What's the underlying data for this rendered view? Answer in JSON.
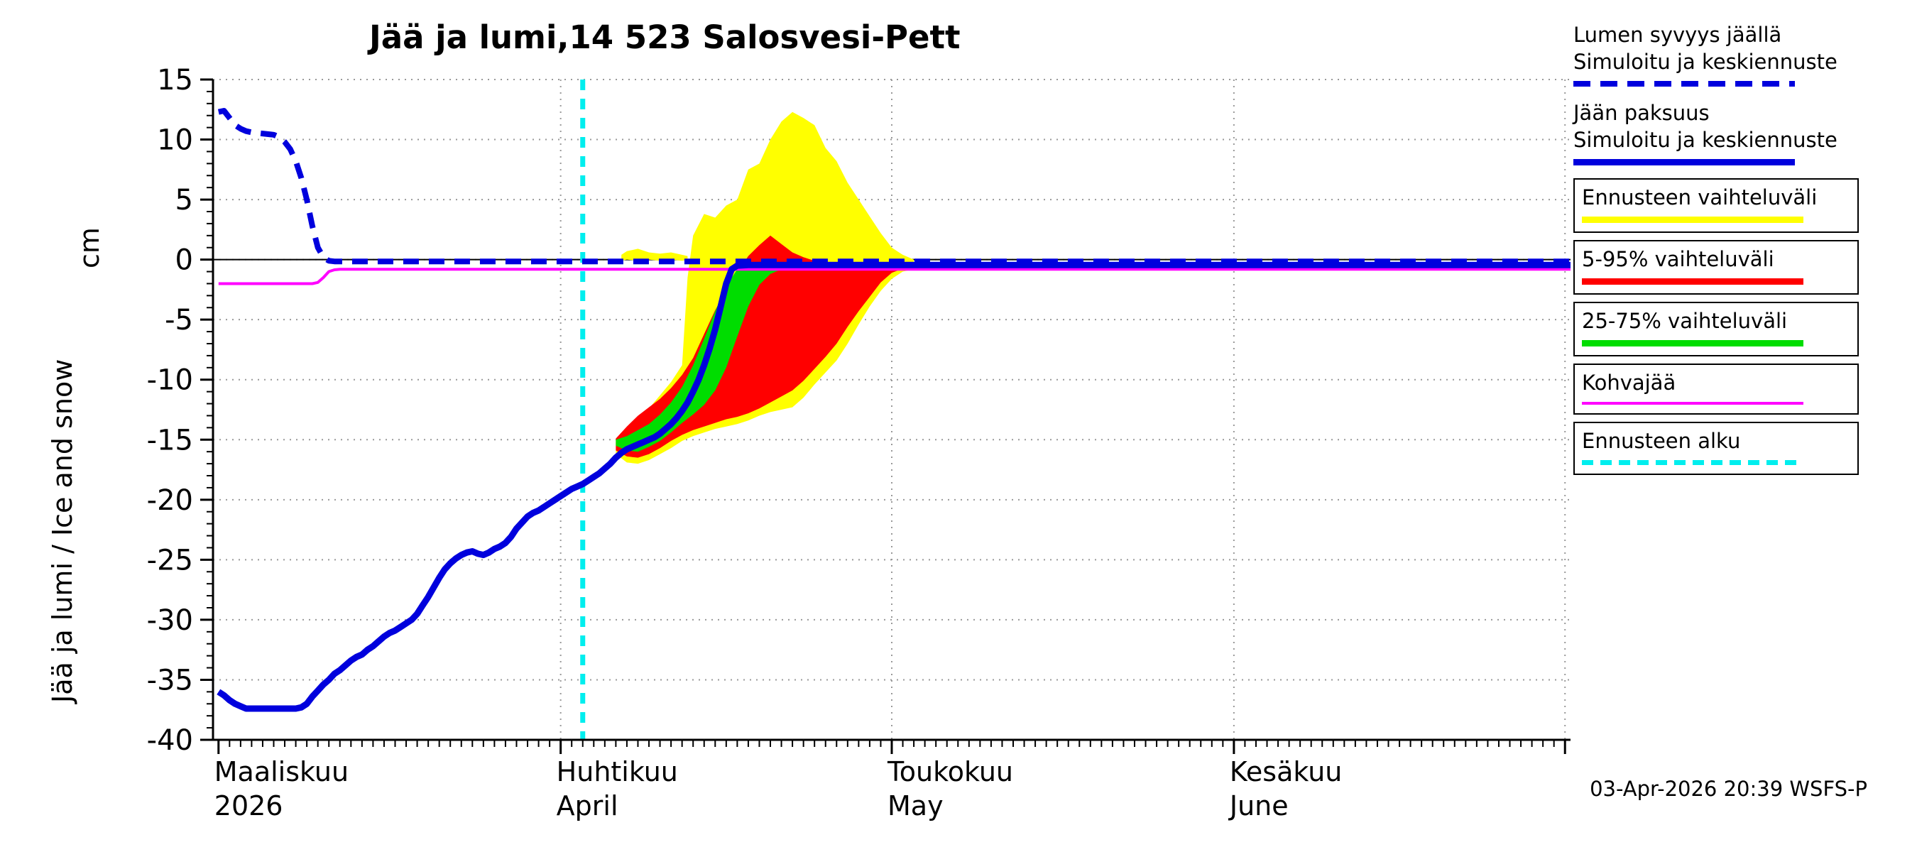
{
  "chart_data": {
    "type": "line",
    "title": "Jää ja lumi,14 523 Salosvesi-Pett",
    "ylabel": "Jää ja lumi / Ice and snow",
    "ylabel_unit": "cm",
    "ylim": [
      -40,
      15
    ],
    "yticks": [
      15,
      10,
      5,
      0,
      -5,
      -10,
      -15,
      -20,
      -25,
      -30,
      -35,
      -40
    ],
    "xlim_days": [
      -0.5,
      122.5
    ],
    "x_month_ticks": [
      {
        "day": 0,
        "line1": "Maaliskuu",
        "line2": "2026"
      },
      {
        "day": 31,
        "line1": "Huhtikuu",
        "line2": "April"
      },
      {
        "day": 61,
        "line1": "Toukokuu",
        "line2": "May"
      },
      {
        "day": 92,
        "line1": "Kesäkuu",
        "line2": "June"
      }
    ],
    "x_grid_days": [
      31,
      61,
      92,
      122
    ],
    "forecast_start_day": 33,
    "colors": {
      "blue": "#0000dd",
      "yellow": "#ffff00",
      "red": "#ff0000",
      "green": "#00dd00",
      "magenta": "#ff00ff",
      "cyan": "#00eeee",
      "grid": "#999999",
      "axis": "#000000"
    },
    "series": [
      {
        "name": "forecast-range",
        "kind": "band",
        "color": "#ffff00",
        "points": [
          [
            36,
            -16.2,
            -15.2
          ],
          [
            37,
            -16.9,
            -14.4
          ],
          [
            38,
            -17.0,
            -13.4
          ],
          [
            39,
            -16.7,
            -12.4
          ],
          [
            40,
            -16.2,
            -11.3
          ],
          [
            41,
            -15.7,
            -10.2
          ],
          [
            42,
            -15.1,
            -8.8
          ],
          [
            42.5,
            -14.9,
            -1.5
          ],
          [
            43,
            -14.7,
            2.0
          ],
          [
            44,
            -14.4,
            3.8
          ],
          [
            45,
            -14.1,
            3.5
          ],
          [
            46,
            -13.9,
            4.5
          ],
          [
            47,
            -13.7,
            5.0
          ],
          [
            48,
            -13.4,
            7.5
          ],
          [
            49,
            -13.0,
            8.0
          ],
          [
            50,
            -12.7,
            10.0
          ],
          [
            51,
            -12.5,
            11.5
          ],
          [
            52,
            -12.3,
            12.3
          ],
          [
            53,
            -11.5,
            11.8
          ],
          [
            54,
            -10.4,
            11.2
          ],
          [
            55,
            -9.4,
            9.3
          ],
          [
            56,
            -8.4,
            8.2
          ],
          [
            57,
            -7.0,
            6.4
          ],
          [
            58,
            -5.4,
            5.0
          ],
          [
            59,
            -3.9,
            3.6
          ],
          [
            60,
            -2.6,
            2.2
          ],
          [
            61,
            -1.6,
            1.0
          ],
          [
            62,
            -1.0,
            0.4
          ],
          [
            63,
            -0.8,
            0.0
          ]
        ]
      },
      {
        "name": "forecast-range-snow",
        "kind": "band",
        "color": "#ffff00",
        "points": [
          [
            36.5,
            -0.1,
            0.4
          ],
          [
            37,
            0.0,
            0.7
          ],
          [
            38,
            -0.1,
            0.9
          ],
          [
            39,
            0.0,
            0.6
          ],
          [
            40,
            -0.1,
            0.5
          ],
          [
            41,
            0.0,
            0.6
          ],
          [
            42,
            -0.1,
            0.4
          ],
          [
            42.5,
            0.0,
            0.3
          ]
        ]
      },
      {
        "name": "range-5-95",
        "kind": "band",
        "color": "#ff0000",
        "points": [
          [
            36,
            -15.9,
            -14.9
          ],
          [
            37,
            -16.4,
            -13.9
          ],
          [
            38,
            -16.5,
            -13.0
          ],
          [
            39,
            -16.2,
            -12.3
          ],
          [
            40,
            -15.7,
            -11.6
          ],
          [
            41,
            -15.1,
            -10.7
          ],
          [
            42,
            -14.6,
            -9.6
          ],
          [
            43,
            -14.2,
            -8.2
          ],
          [
            44,
            -13.9,
            -6.2
          ],
          [
            45,
            -13.6,
            -4.2
          ],
          [
            46,
            -13.3,
            -2.6
          ],
          [
            47,
            -13.1,
            -1.1
          ],
          [
            48,
            -12.8,
            0.3
          ],
          [
            49,
            -12.4,
            1.2
          ],
          [
            50,
            -11.9,
            2.0
          ],
          [
            51,
            -11.4,
            1.3
          ],
          [
            52,
            -10.9,
            0.6
          ],
          [
            53,
            -10.1,
            0.2
          ],
          [
            54,
            -9.1,
            -0.1
          ],
          [
            55,
            -8.1,
            -0.2
          ],
          [
            56,
            -7.0,
            -0.2
          ],
          [
            57,
            -5.6,
            -0.3
          ],
          [
            58,
            -4.3,
            -0.3
          ],
          [
            59,
            -3.1,
            -0.3
          ],
          [
            60,
            -1.9,
            -0.3
          ],
          [
            61,
            -1.1,
            -0.35
          ],
          [
            62,
            -0.75,
            -0.4
          ]
        ]
      },
      {
        "name": "range-25-75",
        "kind": "band",
        "color": "#00dd00",
        "points": [
          [
            36,
            -15.5,
            -15.0
          ],
          [
            37,
            -15.9,
            -14.7
          ],
          [
            38,
            -16.0,
            -14.2
          ],
          [
            39,
            -15.6,
            -13.7
          ],
          [
            40,
            -15.1,
            -12.9
          ],
          [
            41,
            -14.4,
            -11.9
          ],
          [
            42,
            -13.6,
            -10.6
          ],
          [
            43,
            -12.9,
            -8.8
          ],
          [
            44,
            -12.1,
            -6.6
          ],
          [
            45,
            -10.9,
            -4.3
          ],
          [
            46,
            -9.0,
            -2.2
          ],
          [
            47,
            -6.4,
            -0.8
          ],
          [
            48,
            -3.9,
            -0.3
          ],
          [
            49,
            -2.1,
            -0.25
          ],
          [
            50,
            -1.2,
            -0.25
          ],
          [
            51,
            -0.8,
            -0.3
          ],
          [
            52,
            -0.65,
            -0.35
          ],
          [
            53,
            -0.55,
            -0.4
          ]
        ]
      },
      {
        "name": "kohvajaa",
        "kind": "line",
        "color": "#ff00ff",
        "width": 4,
        "points": [
          [
            0,
            -2
          ],
          [
            8.5,
            -2
          ],
          [
            9,
            -1.9
          ],
          [
            9.5,
            -1.5
          ],
          [
            10,
            -1.0
          ],
          [
            10.5,
            -0.85
          ],
          [
            11,
            -0.8
          ],
          [
            122.5,
            -0.8
          ]
        ]
      },
      {
        "name": "ice-thickness",
        "kind": "line",
        "color": "#0000dd",
        "width": 9,
        "points": [
          [
            0,
            -36
          ],
          [
            0.5,
            -36.3
          ],
          [
            1,
            -36.7
          ],
          [
            1.5,
            -37.0
          ],
          [
            2,
            -37.2
          ],
          [
            2.5,
            -37.4
          ],
          [
            7,
            -37.4
          ],
          [
            7.5,
            -37.3
          ],
          [
            8,
            -37.0
          ],
          [
            8.5,
            -36.4
          ],
          [
            9,
            -35.9
          ],
          [
            9.5,
            -35.4
          ],
          [
            10,
            -35.0
          ],
          [
            10.5,
            -34.5
          ],
          [
            11,
            -34.2
          ],
          [
            11.5,
            -33.8
          ],
          [
            12,
            -33.4
          ],
          [
            12.5,
            -33.1
          ],
          [
            13,
            -32.9
          ],
          [
            13.5,
            -32.5
          ],
          [
            14,
            -32.2
          ],
          [
            14.5,
            -31.8
          ],
          [
            15,
            -31.4
          ],
          [
            15.5,
            -31.1
          ],
          [
            16,
            -30.9
          ],
          [
            16.5,
            -30.6
          ],
          [
            17,
            -30.3
          ],
          [
            17.5,
            -30.0
          ],
          [
            18,
            -29.5
          ],
          [
            18.5,
            -28.8
          ],
          [
            19,
            -28.1
          ],
          [
            19.5,
            -27.3
          ],
          [
            20,
            -26.5
          ],
          [
            20.5,
            -25.8
          ],
          [
            21,
            -25.3
          ],
          [
            21.5,
            -24.9
          ],
          [
            22,
            -24.6
          ],
          [
            22.5,
            -24.4
          ],
          [
            23,
            -24.3
          ],
          [
            23.5,
            -24.5
          ],
          [
            24,
            -24.6
          ],
          [
            24.5,
            -24.4
          ],
          [
            25,
            -24.1
          ],
          [
            25.5,
            -23.9
          ],
          [
            26,
            -23.6
          ],
          [
            26.5,
            -23.1
          ],
          [
            27,
            -22.4
          ],
          [
            27.5,
            -21.9
          ],
          [
            28,
            -21.4
          ],
          [
            28.5,
            -21.1
          ],
          [
            29,
            -20.9
          ],
          [
            29.5,
            -20.6
          ],
          [
            30,
            -20.3
          ],
          [
            30.5,
            -20.0
          ],
          [
            31,
            -19.7
          ],
          [
            31.5,
            -19.4
          ],
          [
            32,
            -19.1
          ],
          [
            32.5,
            -18.9
          ],
          [
            33,
            -18.7
          ],
          [
            33.5,
            -18.4
          ],
          [
            34,
            -18.1
          ],
          [
            34.5,
            -17.8
          ],
          [
            35,
            -17.4
          ],
          [
            35.5,
            -17.0
          ],
          [
            36,
            -16.5
          ],
          [
            36.5,
            -16.1
          ],
          [
            37,
            -15.8
          ],
          [
            37.5,
            -15.6
          ],
          [
            38,
            -15.4
          ],
          [
            38.5,
            -15.2
          ],
          [
            39,
            -15.0
          ],
          [
            39.5,
            -14.8
          ],
          [
            40,
            -14.5
          ],
          [
            40.5,
            -14.1
          ],
          [
            41,
            -13.7
          ],
          [
            41.5,
            -13.2
          ],
          [
            42,
            -12.6
          ],
          [
            42.5,
            -11.9
          ],
          [
            43,
            -11.0
          ],
          [
            43.5,
            -10.0
          ],
          [
            44,
            -8.8
          ],
          [
            44.5,
            -7.4
          ],
          [
            45,
            -5.8
          ],
          [
            45.5,
            -3.9
          ],
          [
            46,
            -2.0
          ],
          [
            46.5,
            -0.8
          ],
          [
            47,
            -0.5
          ],
          [
            48,
            -0.45
          ],
          [
            122.5,
            -0.45
          ]
        ]
      },
      {
        "name": "snow-depth",
        "kind": "line",
        "color": "#0000dd",
        "width": 8,
        "dash": [
          22,
          14
        ],
        "points": [
          [
            0,
            12.3
          ],
          [
            0.5,
            12.4
          ],
          [
            1,
            11.8
          ],
          [
            1.5,
            11.2
          ],
          [
            2,
            10.9
          ],
          [
            2.5,
            10.7
          ],
          [
            3,
            10.6
          ],
          [
            4,
            10.5
          ],
          [
            5,
            10.4
          ],
          [
            5.5,
            10.2
          ],
          [
            6,
            9.8
          ],
          [
            6.5,
            9.2
          ],
          [
            7,
            8.2
          ],
          [
            7.5,
            6.8
          ],
          [
            8,
            5.0
          ],
          [
            8.5,
            2.8
          ],
          [
            9,
            1.0
          ],
          [
            9.5,
            0.2
          ],
          [
            10,
            -0.1
          ],
          [
            10.5,
            -0.15
          ],
          [
            122.5,
            -0.15
          ]
        ]
      }
    ]
  },
  "legend": {
    "items": [
      {
        "label_lines": [
          "Lumen syvyys jäällä",
          "Simuloitu ja keskiennuste"
        ],
        "color": "#0000dd",
        "style": "dashed",
        "thickness": 8,
        "boxed": false
      },
      {
        "label_lines": [
          "Jään paksuus",
          "Simuloitu ja keskiennuste"
        ],
        "color": "#0000dd",
        "style": "solid",
        "thickness": 9,
        "boxed": false
      },
      {
        "label_lines": [
          "Ennusteen vaihteluväli"
        ],
        "color": "#ffff00",
        "style": "solid",
        "thickness": 9,
        "boxed": true
      },
      {
        "label_lines": [
          "5-95% vaihteluväli"
        ],
        "color": "#ff0000",
        "style": "solid",
        "thickness": 9,
        "boxed": true
      },
      {
        "label_lines": [
          "25-75% vaihteluväli"
        ],
        "color": "#00dd00",
        "style": "solid",
        "thickness": 9,
        "boxed": true
      },
      {
        "label_lines": [
          "Kohvajää"
        ],
        "color": "#ff00ff",
        "style": "solid",
        "thickness": 4,
        "boxed": true
      },
      {
        "label_lines": [
          "Ennusteen alku"
        ],
        "color": "#00eeee",
        "style": "dashed",
        "thickness": 7,
        "boxed": true
      }
    ]
  },
  "footer": {
    "timestamp": "03-Apr-2026 20:39 WSFS-P"
  }
}
